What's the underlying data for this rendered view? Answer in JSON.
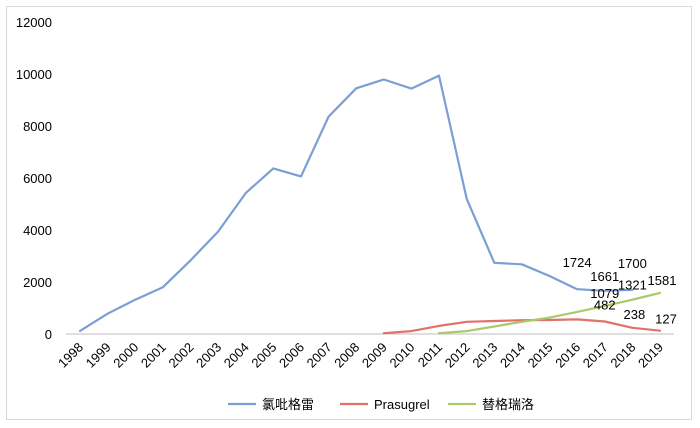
{
  "chart_data": {
    "type": "line",
    "title": "",
    "xlabel": "",
    "ylabel": "",
    "ylim": [
      0,
      12000
    ],
    "yticks": [
      0,
      2000,
      4000,
      6000,
      8000,
      10000,
      12000
    ],
    "categories": [
      "1998",
      "1999",
      "2000",
      "2001",
      "2002",
      "2003",
      "2004",
      "2005",
      "2006",
      "2007",
      "2008",
      "2009",
      "2010",
      "2011",
      "2012",
      "2013",
      "2014",
      "2015",
      "2016",
      "2017",
      "2018",
      "2019"
    ],
    "grid": false,
    "legend_position": "bottom",
    "series": [
      {
        "name": "氯吡格雷",
        "color": "#7A9FD4",
        "values": [
          120,
          780,
          1320,
          1800,
          2830,
          3940,
          5420,
          6370,
          6060,
          8360,
          9450,
          9790,
          9440,
          9940,
          5200,
          2740,
          2680,
          2230,
          1724,
          1661,
          1700,
          null
        ]
      },
      {
        "name": "Prasugrel",
        "color": "#E0716C",
        "values": [
          null,
          null,
          null,
          null,
          null,
          null,
          null,
          null,
          null,
          null,
          null,
          30,
          110,
          310,
          470,
          500,
          530,
          540,
          560,
          482,
          238,
          127
        ]
      },
      {
        "name": "替格瑞洛",
        "color": "#A9C96A",
        "values": [
          null,
          null,
          null,
          null,
          null,
          null,
          null,
          null,
          null,
          null,
          null,
          null,
          null,
          30,
          110,
          290,
          470,
          630,
          850,
          1079,
          1321,
          1581
        ]
      }
    ],
    "data_labels": [
      {
        "text": "1724",
        "category": "2016",
        "value": 1724
      },
      {
        "text": "1700",
        "category": "2018",
        "value": 1700
      },
      {
        "text": "1661",
        "category": "2017",
        "value": 1661
      },
      {
        "text": "1321",
        "category": "2018",
        "value": 1321
      },
      {
        "text": "1079",
        "category": "2017",
        "value": 1079
      },
      {
        "text": "1581",
        "category": "2019",
        "value": 1581
      },
      {
        "text": "482",
        "category": "2017",
        "value": 482
      },
      {
        "text": "238",
        "category": "2018",
        "value": 238
      },
      {
        "text": "127",
        "category": "2019",
        "value": 127
      }
    ]
  }
}
